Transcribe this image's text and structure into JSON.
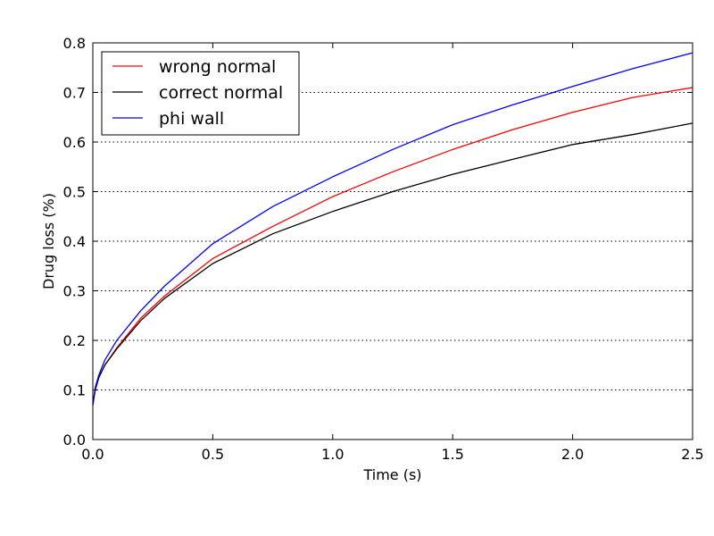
{
  "chart_data": {
    "type": "line",
    "title": "",
    "xlabel": "Time (s)",
    "ylabel": "Drug loss (%)",
    "xlim": [
      0.0,
      2.5
    ],
    "ylim": [
      0.0,
      0.8
    ],
    "xticks": [
      0.0,
      0.5,
      1.0,
      1.5,
      2.0,
      2.5
    ],
    "xtick_labels": [
      "0.0",
      "0.5",
      "1.0",
      "1.5",
      "2.0",
      "2.5"
    ],
    "yticks": [
      0.0,
      0.1,
      0.2,
      0.3,
      0.4,
      0.5,
      0.6,
      0.7,
      0.8
    ],
    "ytick_labels": [
      "0.0",
      "0.1",
      "0.2",
      "0.3",
      "0.4",
      "0.5",
      "0.6",
      "0.7",
      "0.8"
    ],
    "grid": "horizontal dotted",
    "legend_position": "upper-left",
    "x": [
      0.0,
      0.01,
      0.025,
      0.05,
      0.1,
      0.2,
      0.3,
      0.5,
      0.75,
      1.0,
      1.25,
      1.5,
      1.75,
      2.0,
      2.25,
      2.5
    ],
    "series": [
      {
        "name": "wrong normal",
        "color": "#ff0000",
        "values": [
          0.07,
          0.1,
          0.125,
          0.15,
          0.185,
          0.245,
          0.29,
          0.365,
          0.43,
          0.49,
          0.54,
          0.585,
          0.625,
          0.66,
          0.69,
          0.71
        ]
      },
      {
        "name": "correct normal",
        "color": "#000000",
        "values": [
          0.07,
          0.1,
          0.125,
          0.15,
          0.183,
          0.24,
          0.285,
          0.355,
          0.415,
          0.46,
          0.5,
          0.535,
          0.565,
          0.595,
          0.615,
          0.638
        ]
      },
      {
        "name": "phi wall",
        "color": "#0000ff",
        "values": [
          0.07,
          0.105,
          0.13,
          0.16,
          0.2,
          0.26,
          0.31,
          0.395,
          0.47,
          0.53,
          0.585,
          0.635,
          0.675,
          0.712,
          0.748,
          0.78
        ]
      }
    ]
  }
}
